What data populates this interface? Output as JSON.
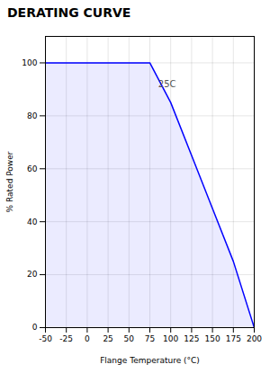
{
  "chart_data": {
    "type": "line",
    "title": "DERATING CURVE",
    "x": [
      -50,
      -25,
      0,
      25,
      50,
      75,
      100,
      125,
      150,
      175,
      200
    ],
    "values": [
      100,
      100,
      100,
      100,
      100,
      100,
      85,
      65,
      45,
      25,
      0
    ],
    "color": "#0000ff",
    "xlabel": "Flange Temperature (°C)",
    "ylabel": "% Rated Power",
    "xlim": [
      -50,
      200
    ],
    "xticks": [
      -50,
      -25,
      0,
      25,
      50,
      75,
      100,
      125,
      150,
      175,
      200
    ],
    "ylim": [
      0,
      110
    ],
    "yticks": [
      0,
      20,
      40,
      60,
      80,
      100
    ],
    "grid": true,
    "annotations": [
      {
        "text": "25C",
        "x": 85,
        "y": 92
      }
    ]
  }
}
